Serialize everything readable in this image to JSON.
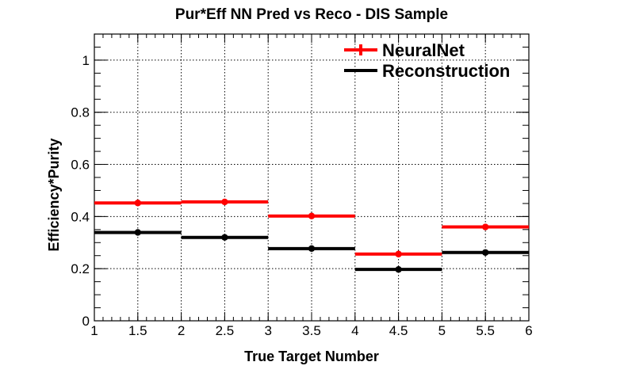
{
  "chart_data": {
    "type": "step",
    "title": "Pur*Eff NN Pred vs Reco - DIS Sample",
    "xlabel": "True Target Number",
    "ylabel": "Efficiency*Purity",
    "xlim": [
      1,
      6
    ],
    "ylim": [
      0,
      1.1
    ],
    "x_ticks": [
      "1",
      "1.5",
      "2",
      "2.5",
      "3",
      "3.5",
      "4",
      "4.5",
      "5",
      "5.5",
      "6"
    ],
    "y_ticks": [
      "0",
      "0.2",
      "0.4",
      "0.6",
      "0.8",
      "1"
    ],
    "grid": true,
    "legend_position": "top-right",
    "bins": [
      [
        1,
        2
      ],
      [
        2,
        3
      ],
      [
        3,
        4
      ],
      [
        4,
        5
      ],
      [
        5,
        6
      ]
    ],
    "x": [
      1.5,
      2.5,
      3.5,
      4.5,
      5.5
    ],
    "series": [
      {
        "name": "NeuralNet",
        "color": "#ff0000",
        "values": [
          0.452,
          0.456,
          0.402,
          0.256,
          0.36
        ]
      },
      {
        "name": "Reconstruction",
        "color": "#000000",
        "values": [
          0.339,
          0.32,
          0.277,
          0.197,
          0.262
        ]
      }
    ]
  }
}
